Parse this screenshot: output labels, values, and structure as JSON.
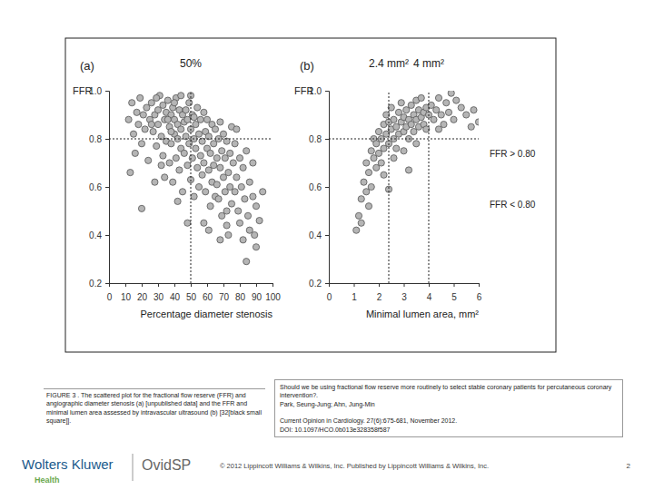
{
  "chart_data": [
    {
      "type": "scatter",
      "title": "(a)",
      "y_label": "FFR",
      "x_label": "Percentage diameter stenosis",
      "color": "#b5b5b5",
      "marker": "circle",
      "x": [
        12,
        14,
        15,
        17,
        18,
        19,
        20,
        21,
        22,
        23,
        24,
        25,
        16,
        20,
        13,
        26,
        27,
        28,
        29,
        30,
        30,
        31,
        32,
        32,
        33,
        34,
        35,
        35,
        28,
        33,
        26,
        29,
        34,
        36,
        37,
        38,
        38,
        39,
        40,
        40,
        41,
        41,
        42,
        42,
        43,
        43,
        44,
        44,
        45,
        45,
        37,
        39,
        42,
        36,
        40,
        44,
        38,
        46,
        46,
        47,
        47,
        48,
        48,
        49,
        49,
        50,
        50,
        51,
        51,
        52,
        52,
        53,
        53,
        54,
        54,
        55,
        55,
        48,
        50,
        52,
        56,
        56,
        57,
        57,
        58,
        58,
        59,
        59,
        60,
        60,
        61,
        61,
        62,
        62,
        63,
        63,
        64,
        64,
        65,
        65,
        58,
        61,
        66,
        66,
        67,
        67,
        68,
        68,
        69,
        69,
        70,
        70,
        71,
        71,
        72,
        72,
        73,
        73,
        74,
        74,
        75,
        75,
        68,
        72,
        76,
        77,
        77,
        78,
        79,
        80,
        80,
        81,
        82,
        82,
        83,
        84,
        85,
        86,
        86,
        88,
        88,
        90,
        90,
        92,
        94,
        84,
        78,
        89
      ],
      "values": [
        0.88,
        0.95,
        0.82,
        0.91,
        0.86,
        0.97,
        0.78,
        0.9,
        0.84,
        0.93,
        0.71,
        0.88,
        0.74,
        0.51,
        0.66,
        0.95,
        0.83,
        0.9,
        0.77,
        0.92,
        0.86,
        0.98,
        0.81,
        0.69,
        0.94,
        0.88,
        0.79,
        0.91,
        0.62,
        0.73,
        0.86,
        0.97,
        0.64,
        0.96,
        0.85,
        0.9,
        0.78,
        0.93,
        0.82,
        0.88,
        0.72,
        0.97,
        0.86,
        0.8,
        0.92,
        0.67,
        0.84,
        0.76,
        0.9,
        0.58,
        0.7,
        0.62,
        0.54,
        0.88,
        0.95,
        0.98,
        0.83,
        0.87,
        0.74,
        0.92,
        0.81,
        0.69,
        0.88,
        0.78,
        0.95,
        0.84,
        0.63,
        0.9,
        0.72,
        0.8,
        0.56,
        0.86,
        0.76,
        0.93,
        0.68,
        0.82,
        0.6,
        0.45,
        0.98,
        0.89,
        0.88,
        0.73,
        0.79,
        0.65,
        0.91,
        0.7,
        0.83,
        0.58,
        0.76,
        0.88,
        0.67,
        0.81,
        0.74,
        0.52,
        0.86,
        0.62,
        0.78,
        0.69,
        0.84,
        0.56,
        0.45,
        0.42,
        0.72,
        0.61,
        0.8,
        0.55,
        0.68,
        0.87,
        0.75,
        0.48,
        0.64,
        0.82,
        0.58,
        0.72,
        0.79,
        0.5,
        0.66,
        0.4,
        0.74,
        0.6,
        0.53,
        0.85,
        0.38,
        0.44,
        0.7,
        0.58,
        0.78,
        0.64,
        0.5,
        0.72,
        0.45,
        0.6,
        0.68,
        0.38,
        0.55,
        0.75,
        0.48,
        0.62,
        0.42,
        0.56,
        0.7,
        0.52,
        0.35,
        0.46,
        0.58,
        0.29,
        0.84,
        0.4
      ],
      "xlim": [
        0,
        100
      ],
      "xticks": [
        0,
        10,
        20,
        30,
        40,
        50,
        60,
        70,
        80,
        90,
        100
      ],
      "ylim": [
        0.2,
        1
      ],
      "yticks": [
        0.2,
        0.4,
        0.6,
        0.8,
        {
          "value": 1,
          "label": "1.0"
        }
      ],
      "vlines": [
        {
          "value": 50,
          "label": "50%"
        }
      ],
      "hlines": [
        0.8
      ]
    },
    {
      "type": "scatter",
      "title": "(b)",
      "y_label": "FFR",
      "x_label": "Minimal lumen area, mm²",
      "color": "#b5b5b5",
      "marker": "circle",
      "x": [
        1.1,
        1.2,
        1.3,
        1.4,
        1.5,
        1.5,
        1.6,
        1.7,
        1.7,
        1.8,
        1.8,
        1.9,
        1.9,
        2,
        2,
        1.3,
        1.6,
        2.1,
        2.1,
        2.2,
        2.2,
        2.3,
        2.3,
        2.4,
        2.4,
        2.5,
        2.5,
        2.6,
        2.6,
        2.7,
        2.7,
        2.8,
        2.8,
        2.9,
        2.9,
        3,
        3,
        2.2,
        2.6,
        2.4,
        3.1,
        3.1,
        3.2,
        3.2,
        3.3,
        3.3,
        3.4,
        3.4,
        3.5,
        3.5,
        3.6,
        3.6,
        3.7,
        3.7,
        3.8,
        3.8,
        3.9,
        3.9,
        4,
        3.2,
        3,
        3.5,
        4.1,
        4.2,
        4.3,
        4.4,
        4.5,
        4.6,
        4.7,
        4.8,
        5,
        5.1,
        5.3,
        5.5,
        5.7,
        6,
        4.4,
        4.9,
        5.8
      ],
      "values": [
        0.42,
        0.48,
        0.55,
        0.62,
        0.58,
        0.7,
        0.66,
        0.75,
        0.6,
        0.72,
        0.8,
        0.68,
        0.78,
        0.74,
        0.83,
        0.45,
        0.52,
        0.8,
        0.7,
        0.86,
        0.76,
        0.82,
        0.9,
        0.78,
        0.87,
        0.84,
        0.93,
        0.8,
        0.88,
        0.85,
        0.76,
        0.91,
        0.82,
        0.87,
        0.95,
        0.83,
        0.89,
        0.65,
        0.72,
        0.59,
        0.92,
        0.85,
        0.88,
        0.8,
        0.94,
        0.86,
        0.9,
        0.83,
        0.96,
        0.88,
        0.85,
        0.92,
        0.89,
        0.97,
        0.86,
        0.91,
        0.93,
        0.84,
        0.9,
        0.67,
        0.75,
        0.78,
        0.94,
        0.88,
        0.92,
        0.97,
        0.9,
        0.86,
        0.95,
        0.91,
        0.88,
        0.96,
        0.93,
        0.9,
        0.85,
        0.87,
        0.84,
        0.99,
        0.92
      ],
      "xlim": [
        0,
        6
      ],
      "xticks": [
        0,
        1,
        2,
        3,
        4,
        5,
        6
      ],
      "ylim": [
        0.2,
        1
      ],
      "yticks": [
        0.2,
        0.4,
        0.6,
        0.8,
        {
          "value": 1,
          "label": "1.0"
        }
      ],
      "vlines": [
        {
          "value": 2.4,
          "label": "2.4 mm²"
        },
        {
          "value": 4,
          "label": "4 mm²"
        }
      ],
      "hlines": [
        0.8
      ],
      "annotations": [
        "FFR > 0.80",
        "FFR < 0.80"
      ]
    }
  ],
  "caption": "FIGURE 3 . The scattered plot for the fractional flow reserve (FFR) and angiographic diameter stenosis (a) [unpublished data] and the FFR and minimal lumen area assessed by intravascular ultrasound (b) [32[black small square]].",
  "citation": {
    "title": "Should we be using fractional flow reserve more routinely to select stable coronary patients for percutaneous coronary intervention?.",
    "authors": "Park, Seung-Jung; Ahn, Jung-Min",
    "journal": "Current Opinion in Cardiology. 27(6):675-681, November 2012.",
    "doi": "DOI: 10.1097/HCO.0b013e328358f587"
  },
  "footer": {
    "logo": "Wolters Kluwer",
    "logo_sub": "Health",
    "platform": "OvidSP",
    "copyright": "© 2012 Lippincott Williams & Wilkins, Inc. Published by Lippincott Williams & Wilkins, Inc.",
    "page": 2
  }
}
